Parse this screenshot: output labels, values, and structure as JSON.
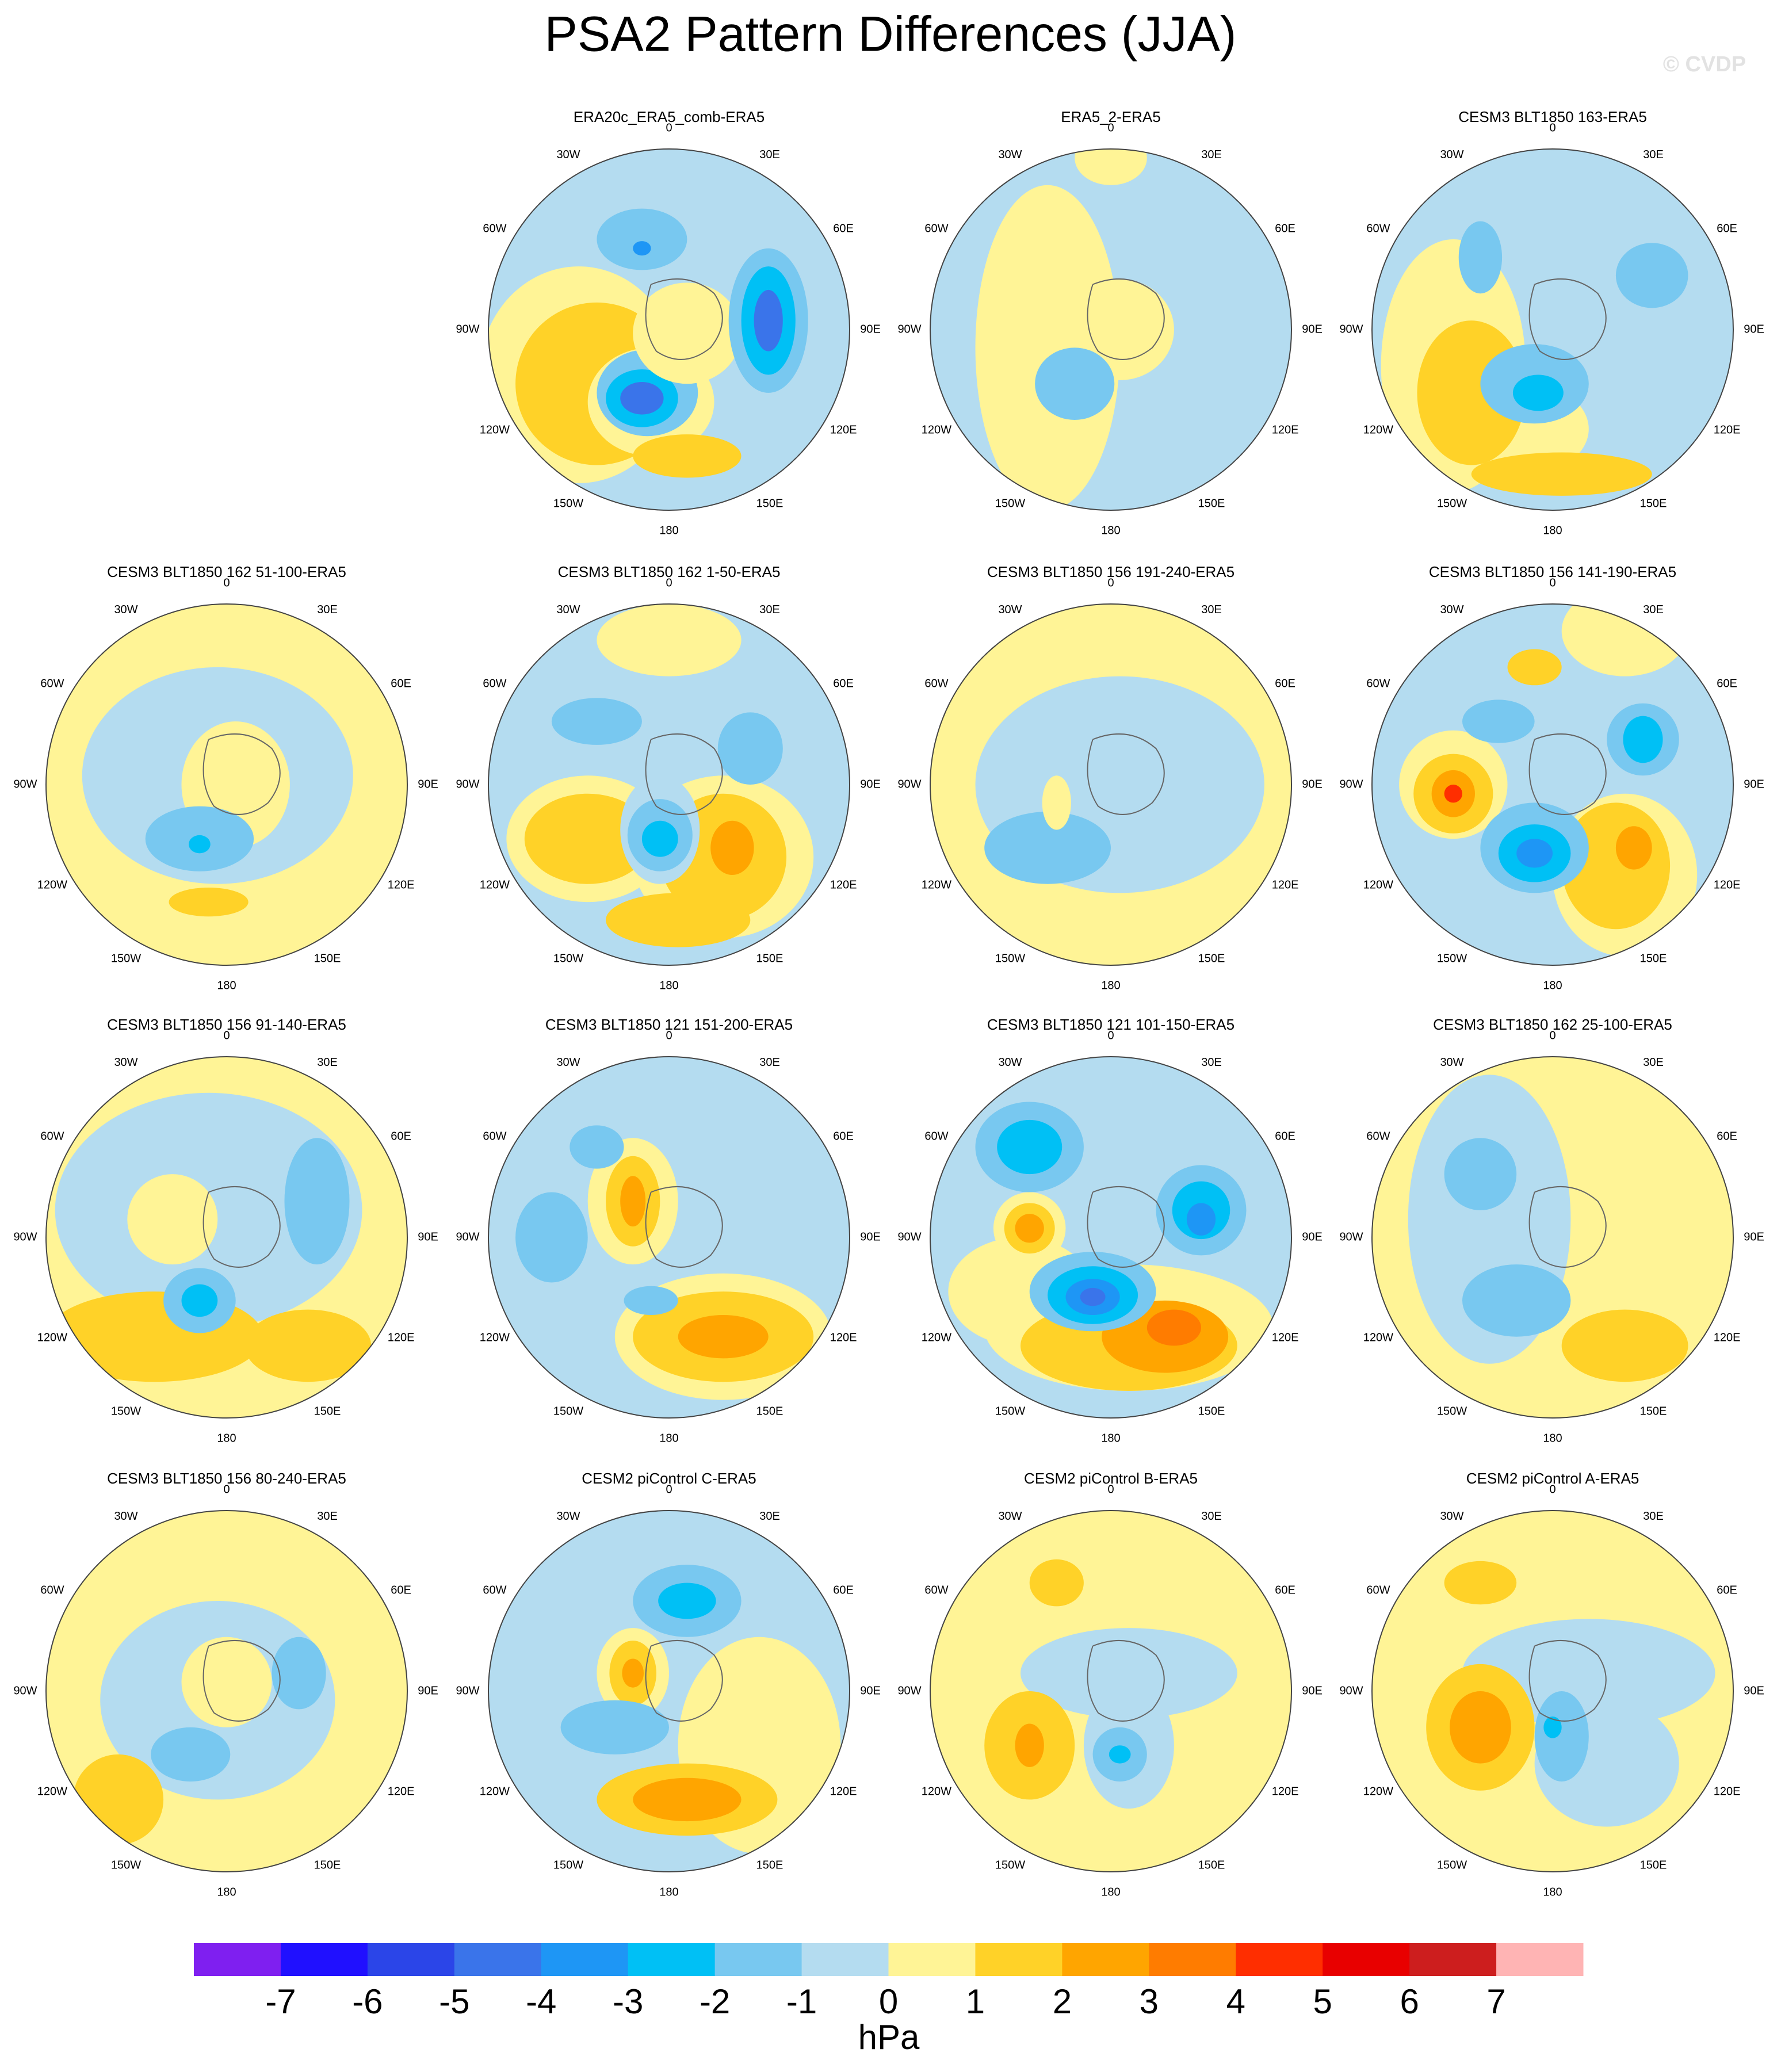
{
  "title": "PSA2 Pattern Differences (JJA)",
  "watermark": "© CVDP",
  "panels": [
    {
      "title": "ERA20c_ERA5_comb-ERA5"
    },
    {
      "title": "ERA5_2-ERA5"
    },
    {
      "title": "CESM3 BLT1850 163-ERA5"
    },
    {
      "title": "CESM3 BLT1850 162 51-100-ERA5"
    },
    {
      "title": "CESM3 BLT1850 162 1-50-ERA5"
    },
    {
      "title": "CESM3 BLT1850 156 191-240-ERA5"
    },
    {
      "title": "CESM3 BLT1850 156 141-190-ERA5"
    },
    {
      "title": "CESM3 BLT1850 156 91-140-ERA5"
    },
    {
      "title": "CESM3 BLT1850 121 151-200-ERA5"
    },
    {
      "title": "CESM3 BLT1850 121 101-150-ERA5"
    },
    {
      "title": "CESM3 BLT1850 162 25-100-ERA5"
    },
    {
      "title": "CESM3 BLT1850 156 80-240-ERA5"
    },
    {
      "title": "CESM2 piControl C-ERA5"
    },
    {
      "title": "CESM2 piControl B-ERA5"
    },
    {
      "title": "CESM2 piControl A-ERA5"
    }
  ],
  "lon_labels": [
    "0",
    "30E",
    "60E",
    "90E",
    "120E",
    "150E",
    "180",
    "150W",
    "120W",
    "90W",
    "60W",
    "30W"
  ],
  "colorbar": {
    "colors": [
      "#7f1ff0",
      "#2010ff",
      "#2b45e8",
      "#3a74ea",
      "#1e96f5",
      "#00c0f5",
      "#78c8f0",
      "#b4dcf0",
      "#fff496",
      "#ffd228",
      "#ffa500",
      "#ff7c00",
      "#ff2e00",
      "#e80000",
      "#cd1e1e",
      "#ffb4b4"
    ],
    "ticks": [
      -7,
      -6,
      -5,
      -4,
      -3,
      -2,
      -1,
      0,
      1,
      2,
      3,
      4,
      5,
      6,
      7
    ],
    "unit": "hPa"
  }
}
